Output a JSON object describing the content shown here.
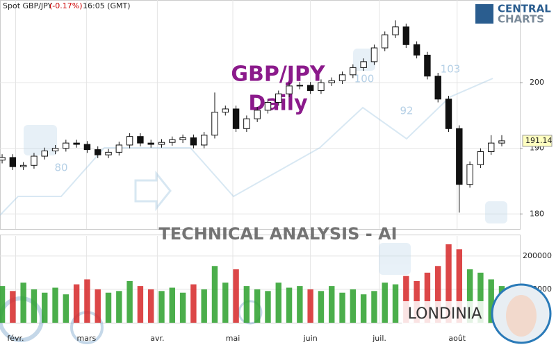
{
  "header": {
    "instrument": "Spot GBP/JPY",
    "change": "(-0.17%)",
    "time": "16:05 (GMT)",
    "logo_top": "CENTRAL",
    "logo_bottom": "CHARTS"
  },
  "chart_data": {
    "type": "candlestick",
    "title": "GBP/JPY",
    "subtitle": "Daily",
    "watermark": "TECHNICAL  ANALYSIS - AI",
    "brand": "LONDINIA",
    "overlay_labels": [
      "80",
      "100",
      "92",
      "103"
    ],
    "open": [
      188.2,
      188.6,
      187.2,
      187.4,
      188.8,
      189.6,
      190.0,
      190.8,
      190.6,
      189.8,
      189.0,
      189.4,
      190.5,
      191.8,
      190.8,
      190.6,
      190.9,
      191.3,
      191.6,
      190.5,
      192.0,
      195.5,
      196.0,
      193.0,
      194.5,
      195.8,
      197.0,
      198.3,
      199.5,
      199.6,
      198.8,
      200.0,
      200.3,
      201.2,
      202.3,
      203.2,
      205.3,
      207.3,
      208.5,
      205.8,
      204.2,
      201.0,
      197.5,
      193.0,
      184.5,
      187.5,
      189.5,
      190.8
    ],
    "high": [
      189.1,
      189.1,
      187.9,
      189.3,
      190.1,
      190.5,
      191.3,
      191.3,
      191.1,
      190.3,
      189.9,
      191.0,
      192.3,
      192.3,
      191.3,
      191.4,
      191.8,
      192.1,
      192.1,
      192.5,
      198.5,
      196.5,
      196.5,
      195.0,
      196.3,
      197.5,
      198.8,
      200.0,
      200.1,
      200.1,
      200.5,
      200.8,
      201.7,
      202.8,
      203.7,
      205.8,
      207.8,
      209.5,
      209.0,
      206.3,
      204.7,
      201.5,
      198.0,
      193.5,
      188.0,
      190.0,
      192.0,
      192.0
    ],
    "low": [
      187.7,
      186.7,
      186.7,
      186.9,
      188.3,
      189.1,
      189.5,
      190.1,
      189.3,
      188.5,
      188.5,
      188.9,
      190.0,
      190.3,
      190.1,
      190.1,
      190.4,
      190.8,
      190.0,
      190.0,
      191.5,
      195.0,
      192.5,
      192.5,
      194.0,
      195.3,
      196.5,
      197.8,
      199.0,
      198.3,
      198.3,
      199.5,
      199.8,
      200.7,
      201.8,
      202.7,
      204.8,
      206.8,
      205.3,
      203.7,
      200.5,
      197.0,
      192.5,
      180.2,
      184.0,
      187.0,
      189.0,
      190.3
    ],
    "close": [
      188.6,
      187.2,
      187.4,
      188.8,
      189.6,
      190.0,
      190.8,
      190.6,
      189.8,
      189.0,
      189.4,
      190.5,
      191.8,
      190.8,
      190.6,
      190.9,
      191.3,
      191.6,
      190.5,
      192.0,
      195.5,
      196.0,
      193.0,
      194.5,
      195.8,
      197.0,
      198.3,
      199.5,
      199.6,
      198.8,
      200.0,
      200.3,
      201.2,
      202.3,
      203.2,
      205.3,
      207.3,
      208.5,
      205.8,
      204.2,
      201.0,
      197.5,
      193.0,
      184.5,
      187.5,
      189.5,
      190.8,
      191.14
    ],
    "volume": [
      110000,
      95000,
      120000,
      100000,
      90000,
      105000,
      85000,
      115000,
      130000,
      100000,
      90000,
      95000,
      125000,
      110000,
      100000,
      95000,
      105000,
      90000,
      115000,
      100000,
      170000,
      120000,
      160000,
      110000,
      100000,
      95000,
      120000,
      105000,
      110000,
      100000,
      95000,
      110000,
      90000,
      100000,
      85000,
      95000,
      120000,
      115000,
      140000,
      125000,
      150000,
      170000,
      235000,
      220000,
      160000,
      150000,
      130000,
      110000
    ],
    "xlim": [
      -0.2,
      48.7
    ],
    "xticks": [
      {
        "value": 1.27,
        "label": "févr."
      },
      {
        "value": 7.93,
        "label": "mars"
      },
      {
        "value": 14.6,
        "label": "avr."
      },
      {
        "value": 21.7,
        "label": "mai"
      },
      {
        "value": 29,
        "label": "juin"
      },
      {
        "value": 35.5,
        "label": "juil."
      },
      {
        "value": 42.8,
        "label": "août"
      }
    ],
    "ylim": [
      177.7,
      212.6
    ],
    "yticks": [
      180,
      190,
      200
    ],
    "y2lim": [
      0,
      260000
    ],
    "y2ticks": [
      100000,
      200000
    ],
    "up_color": "#ffffff",
    "down_color": "#111111",
    "volume_up_color": "#2ca02c",
    "volume_down_color": "#d62728",
    "grid": true
  }
}
